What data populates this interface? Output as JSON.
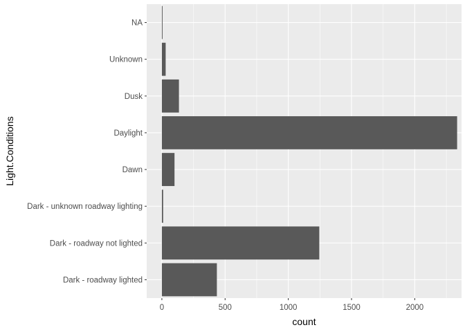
{
  "chart_data": {
    "type": "bar",
    "orientation": "horizontal",
    "title": "",
    "xlabel": "count",
    "ylabel": "Light.Conditions",
    "categories": [
      "Dark - roadway lighted",
      "Dark - roadway not lighted",
      "Dark - unknown roadway lighting",
      "Dawn",
      "Daylight",
      "Dusk",
      "Unknown",
      "NA"
    ],
    "values": [
      435,
      1245,
      10,
      100,
      2335,
      135,
      30,
      3
    ],
    "xlim": [
      -120,
      2370
    ],
    "xticks": [
      0,
      500,
      1000,
      1500,
      2000
    ],
    "grid": true,
    "legend": "none",
    "colors": {
      "panel_background": "#ebebeb",
      "grid_major": "#ffffff",
      "bar_fill": "#595959",
      "tick_text": "#4d4d4d",
      "tick_mark": "#333333",
      "axis_title": "#000000"
    }
  }
}
